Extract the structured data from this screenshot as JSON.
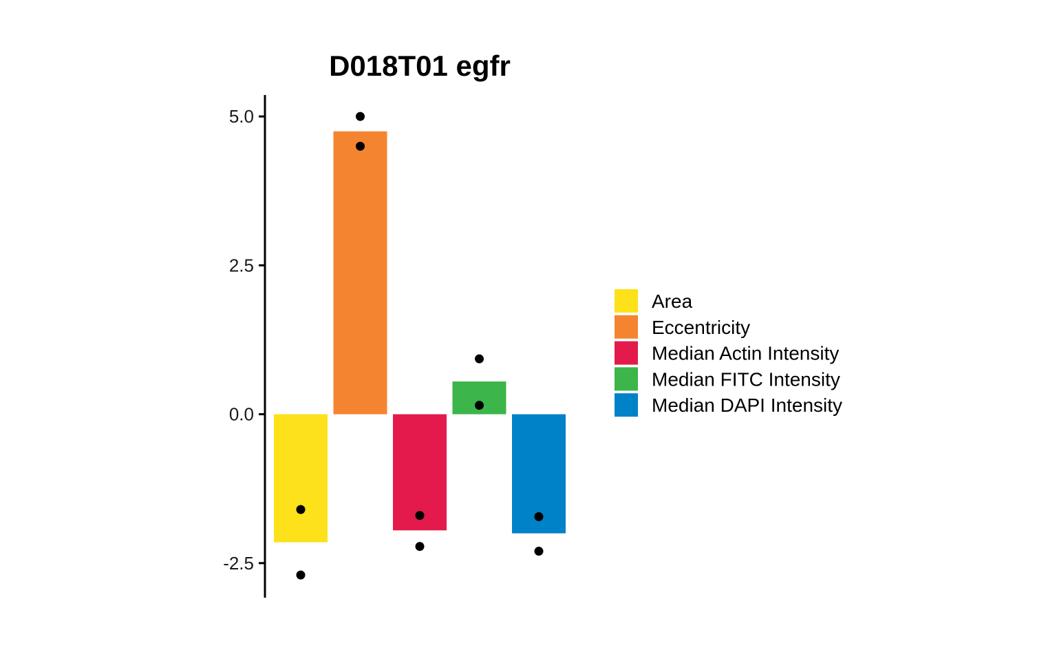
{
  "chart_data": {
    "type": "bar",
    "title": "D018T01 egfr",
    "xlabel": "",
    "ylabel": "",
    "ylim": [
      -3.08,
      5.36
    ],
    "yticks": [
      -2.5,
      0.0,
      2.5,
      5.0
    ],
    "ytick_labels": [
      "-2.5",
      "0.0",
      "2.5",
      "5.0"
    ],
    "categories": [
      "Area",
      "Eccentricity",
      "Median Actin Intensity",
      "Median FITC Intensity",
      "Median DAPI Intensity"
    ],
    "values": [
      -2.15,
      4.75,
      -1.95,
      0.55,
      -2.0
    ],
    "colors": [
      "#FDE11A",
      "#F58431",
      "#E31A4B",
      "#3CB54A",
      "#0082C8"
    ],
    "points": [
      [
        -1.6,
        -2.7
      ],
      [
        5.0,
        4.5
      ],
      [
        -1.7,
        -2.22
      ],
      [
        0.93,
        0.15
      ],
      [
        -1.72,
        -2.3
      ]
    ],
    "grid": false,
    "legend": {
      "position": "right",
      "entries": [
        "Area",
        "Eccentricity",
        "Median Actin Intensity",
        "Median FITC Intensity",
        "Median DAPI Intensity"
      ]
    }
  }
}
